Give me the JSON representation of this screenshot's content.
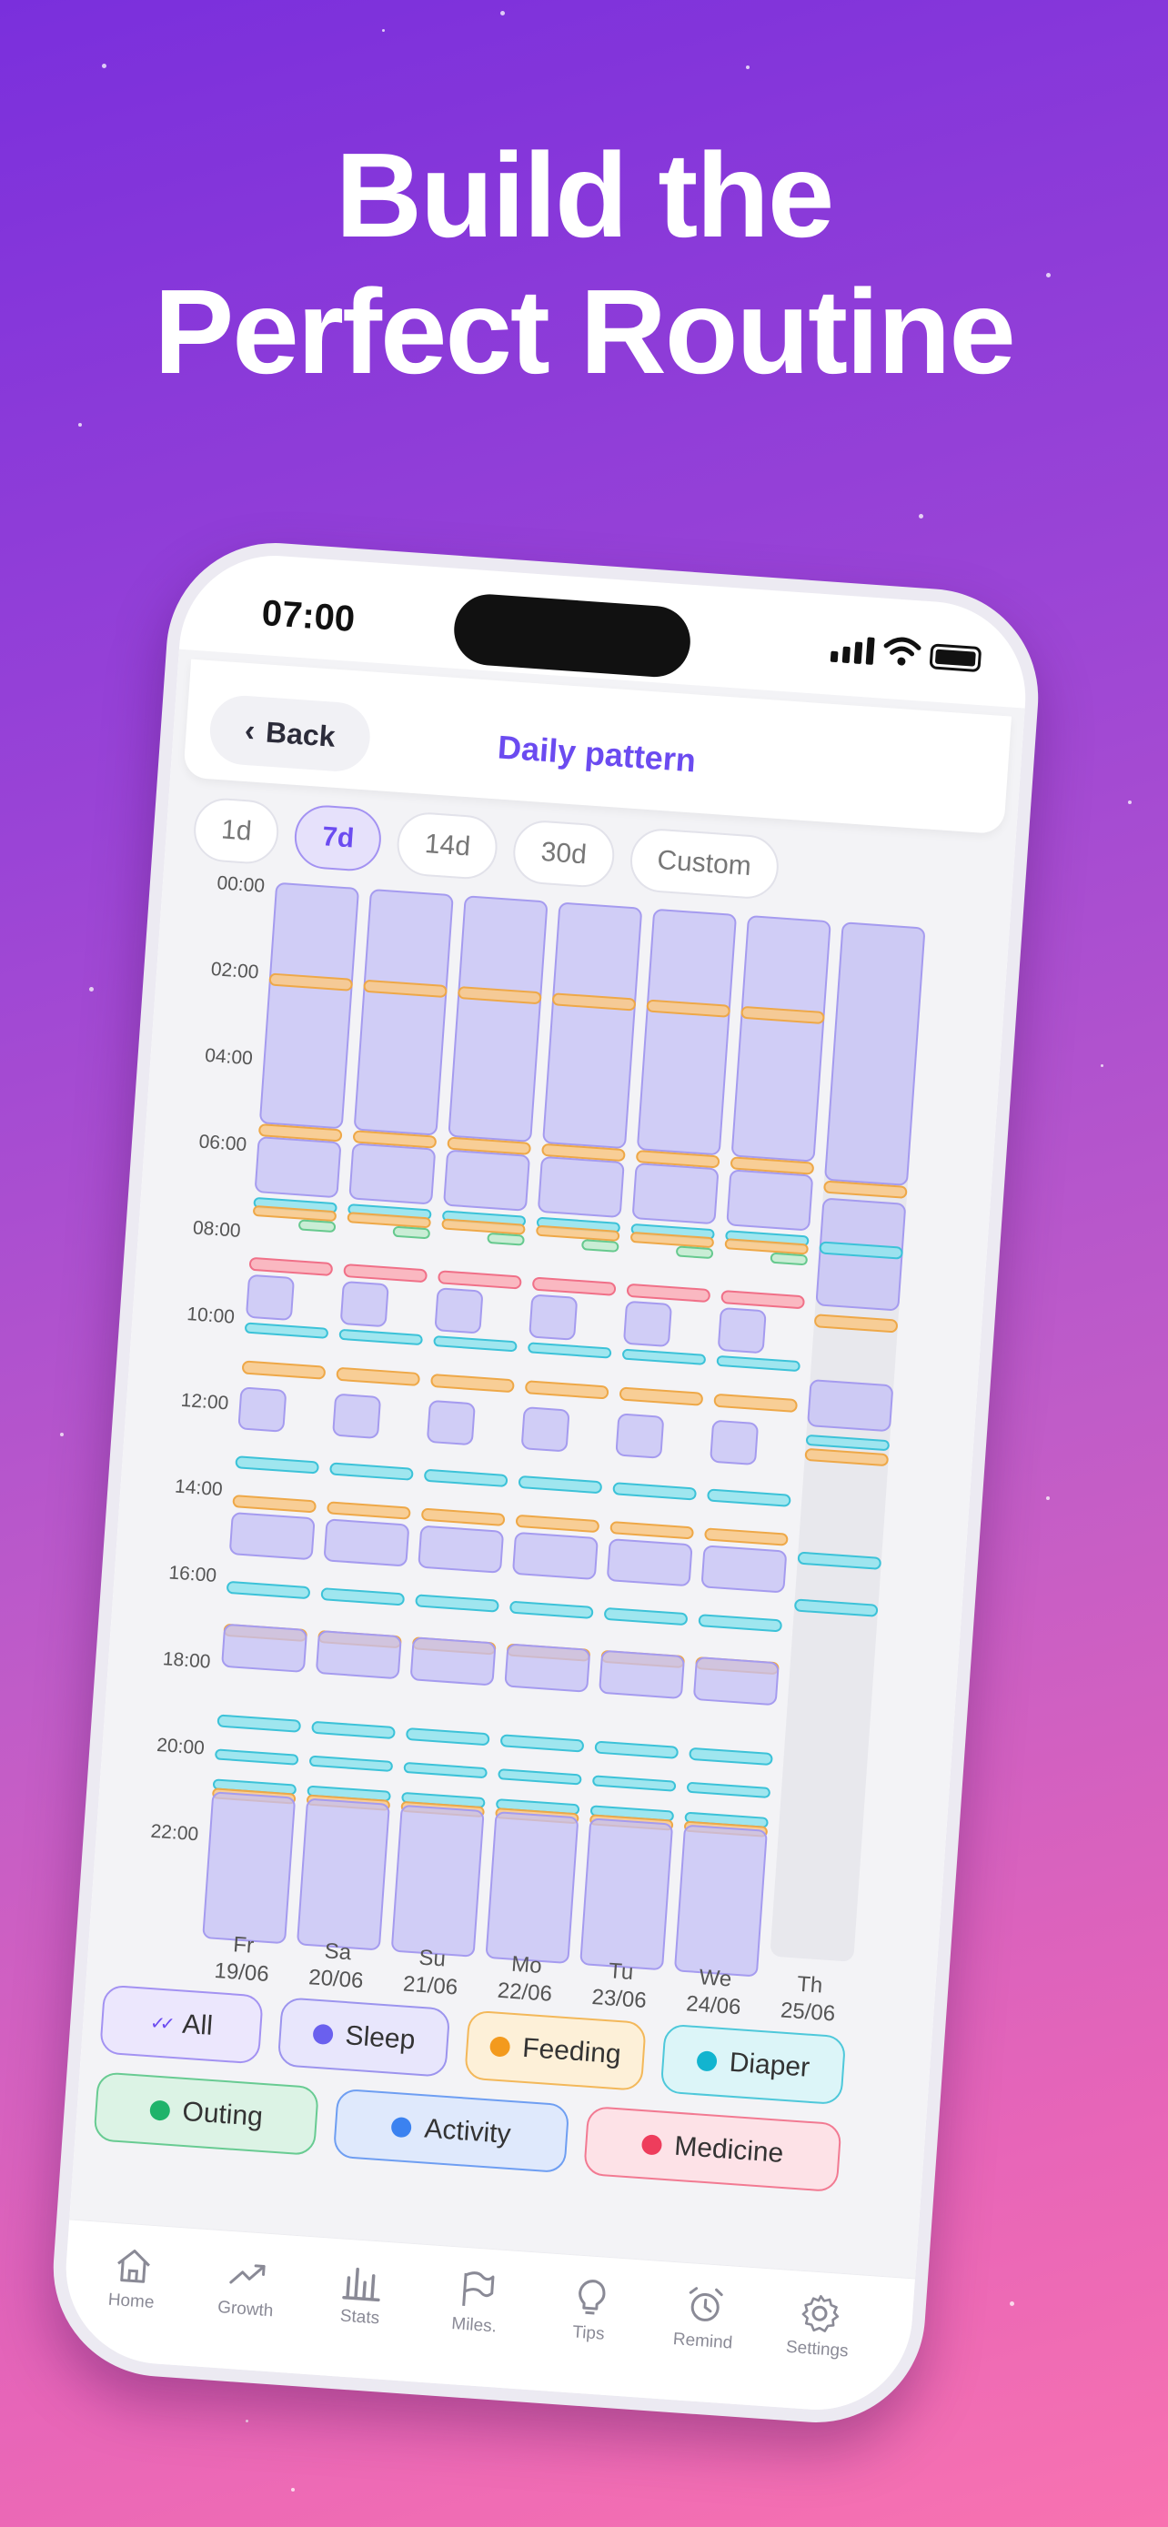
{
  "headline": {
    "line1": "Build the",
    "line2": "Perfect Routine"
  },
  "status": {
    "time": "07:00"
  },
  "header": {
    "back_label": "Back",
    "title": "Daily pattern"
  },
  "ranges": [
    {
      "label": "1d",
      "active": false
    },
    {
      "label": "7d",
      "active": true
    },
    {
      "label": "14d",
      "active": false
    },
    {
      "label": "30d",
      "active": false
    },
    {
      "label": "Custom",
      "active": false
    }
  ],
  "chart_hours": [
    "00:00",
    "02:00",
    "04:00",
    "06:00",
    "08:00",
    "10:00",
    "12:00",
    "14:00",
    "16:00",
    "18:00",
    "20:00",
    "22:00"
  ],
  "days": [
    {
      "day": "Fr",
      "date": "19/06"
    },
    {
      "day": "Sa",
      "date": "20/06"
    },
    {
      "day": "Su",
      "date": "21/06"
    },
    {
      "day": "Mo",
      "date": "22/06"
    },
    {
      "day": "Tu",
      "date": "23/06"
    },
    {
      "day": "We",
      "date": "24/06"
    },
    {
      "day": "Th",
      "date": "25/06"
    }
  ],
  "legend": [
    {
      "label": "All",
      "color": "#6b4bf0",
      "icon": "double-check-icon"
    },
    {
      "label": "Sleep",
      "color": "#6a60ee",
      "icon": "dot"
    },
    {
      "label": "Feeding",
      "color": "#f39a1d",
      "icon": "dot"
    },
    {
      "label": "Diaper",
      "color": "#12b4cf",
      "icon": "dot"
    },
    {
      "label": "Outing",
      "color": "#1fb36a",
      "icon": "dot"
    },
    {
      "label": "Activity",
      "color": "#3b82f0",
      "icon": "dot"
    },
    {
      "label": "Medicine",
      "color": "#ee3d5c",
      "icon": "dot"
    }
  ],
  "tabs": [
    {
      "label": "Home",
      "icon": "home-icon"
    },
    {
      "label": "Growth",
      "icon": "trend-icon"
    },
    {
      "label": "Stats",
      "icon": "bar-chart-icon"
    },
    {
      "label": "Miles.",
      "icon": "flag-icon"
    },
    {
      "label": "Tips",
      "icon": "lightbulb-icon"
    },
    {
      "label": "Remind",
      "icon": "alarm-icon"
    },
    {
      "label": "Settings",
      "icon": "gear-icon"
    }
  ]
}
